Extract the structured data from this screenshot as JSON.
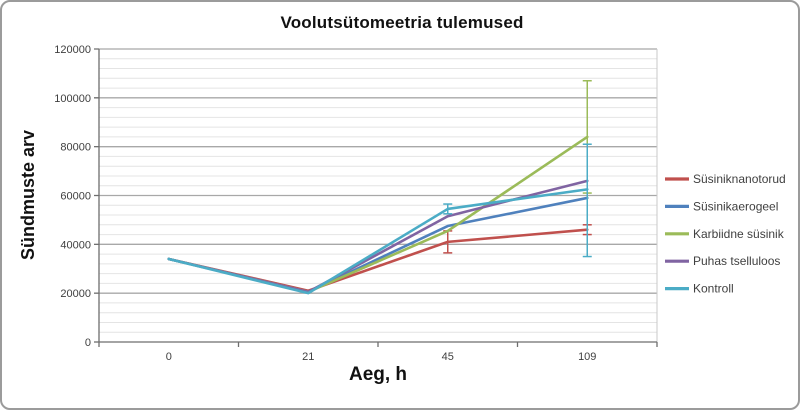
{
  "window": {
    "background_color": "#ffffff",
    "frame_border_color": "#9b9b9b"
  },
  "chart_data": {
    "type": "line",
    "title": "Voolutsütomeetria tulemused",
    "xlabel": "Aeg, h",
    "ylabel": "Sündmuste arv",
    "categories": [
      "0",
      "21",
      "45",
      "109"
    ],
    "y_axis": {
      "min": 0,
      "max": 120000,
      "major_unit": 20000,
      "minor_unit": 4000,
      "tick_labels": [
        "0",
        "20000",
        "40000",
        "60000",
        "80000",
        "100000",
        "120000"
      ]
    },
    "grid": {
      "major": true,
      "minor": true
    },
    "legend_position": "right",
    "series": [
      {
        "name": "Süsiniknanotorud",
        "color": "#C0504D",
        "values": [
          34000,
          21000,
          41000,
          46000
        ]
      },
      {
        "name": "Süsinikaerogeel",
        "color": "#4F81BD",
        "values": [
          34000,
          20500,
          47500,
          59000
        ]
      },
      {
        "name": "Karbiidne süsinik",
        "color": "#9BBB59",
        "values": [
          34000,
          20500,
          45500,
          84000
        ]
      },
      {
        "name": "Puhas tselluloos",
        "color": "#8064A2",
        "values": [
          34000,
          20500,
          51500,
          66000
        ]
      },
      {
        "name": "Kontroll",
        "color": "#4BACC6",
        "values": [
          34000,
          20000,
          54500,
          62500
        ]
      }
    ],
    "error_bars": [
      {
        "series": "Süsiniknanotorud",
        "category_index": 2,
        "low": 36500,
        "high": 45500
      },
      {
        "series": "Kontroll",
        "category_index": 2,
        "low": 52500,
        "high": 56500
      },
      {
        "series": "Karbiidne süsinik",
        "category_index": 3,
        "low": 61000,
        "high": 107000
      },
      {
        "series": "Kontroll",
        "category_index": 3,
        "low": 35000,
        "high": 81000
      },
      {
        "series": "Süsiniknanotorud",
        "category_index": 3,
        "low": 44000,
        "high": 48000
      }
    ],
    "style": {
      "axis_color": "#6e6e6e",
      "major_grid_color": "#a8a8a8",
      "minor_grid_color": "#e4e4e4",
      "plot_right_border_color": "#c9c9c9",
      "tick_label_color": "#3f3f3f",
      "legend_text_color": "#404040"
    }
  }
}
